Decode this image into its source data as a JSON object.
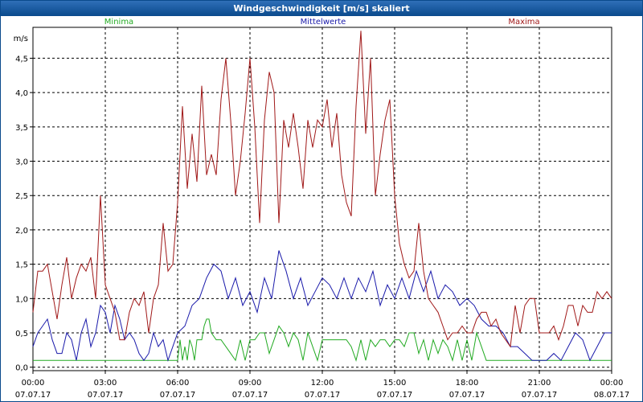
{
  "window": {
    "title": "Windgeschwindigkeit [m/s] skaliert"
  },
  "chart_data": {
    "type": "line",
    "title": "Windgeschwindigkeit [m/s] skaliert",
    "ylabel": "m/s",
    "xlabel": "",
    "ylim": [
      -0.05,
      4.95
    ],
    "yticks": [
      0.0,
      0.5,
      1.0,
      1.5,
      2.0,
      2.5,
      3.0,
      3.5,
      4.0,
      4.5
    ],
    "ytick_labels": [
      "0,0",
      "0,5",
      "1,0",
      "1,5",
      "2,0",
      "2,5",
      "3,0",
      "3,5",
      "4,0",
      "4,5"
    ],
    "xlim_hours": [
      0,
      24
    ],
    "xticks_hours": [
      0,
      3,
      6,
      9,
      12,
      15,
      18,
      21,
      24
    ],
    "xtick_times": [
      "00:00",
      "03:00",
      "06:00",
      "09:00",
      "12:00",
      "15:00",
      "18:00",
      "21:00",
      "00:00"
    ],
    "xtick_dates": [
      "07.07.17",
      "07.07.17",
      "07.07.17",
      "07.07.17",
      "07.07.17",
      "07.07.17",
      "07.07.17",
      "07.07.17",
      "08.07.17"
    ],
    "grid": true,
    "legend_position": "top",
    "series": [
      {
        "name": "Minima",
        "color": "#22aa22",
        "x": [
          0,
          6.0,
          6.1,
          6.2,
          6.3,
          6.4,
          6.5,
          6.6,
          6.7,
          6.8,
          7.0,
          7.1,
          7.2,
          7.3,
          7.4,
          7.6,
          7.8,
          8.0,
          8.2,
          8.4,
          8.6,
          8.8,
          9.0,
          9.2,
          9.4,
          9.6,
          9.8,
          10.0,
          10.2,
          10.4,
          10.6,
          10.8,
          11.0,
          11.2,
          11.4,
          11.6,
          11.8,
          12.0,
          13.0,
          13.2,
          13.4,
          13.6,
          13.8,
          14.0,
          14.2,
          14.4,
          14.6,
          14.8,
          15.0,
          15.2,
          15.4,
          15.6,
          15.8,
          16.0,
          16.2,
          16.4,
          16.6,
          16.8,
          17.0,
          17.2,
          17.4,
          17.6,
          17.8,
          18.0,
          18.2,
          18.4,
          18.6,
          18.8,
          19.0,
          24.0
        ],
        "y": [
          0.1,
          0.1,
          0.4,
          0.1,
          0.3,
          0.1,
          0.4,
          0.3,
          0.1,
          0.4,
          0.4,
          0.6,
          0.7,
          0.7,
          0.5,
          0.4,
          0.4,
          0.3,
          0.2,
          0.1,
          0.4,
          0.1,
          0.4,
          0.4,
          0.5,
          0.5,
          0.2,
          0.4,
          0.6,
          0.5,
          0.3,
          0.5,
          0.4,
          0.1,
          0.5,
          0.3,
          0.1,
          0.4,
          0.4,
          0.3,
          0.1,
          0.4,
          0.1,
          0.4,
          0.3,
          0.4,
          0.4,
          0.3,
          0.4,
          0.4,
          0.3,
          0.5,
          0.5,
          0.2,
          0.4,
          0.1,
          0.4,
          0.2,
          0.4,
          0.3,
          0.1,
          0.4,
          0.1,
          0.4,
          0.1,
          0.5,
          0.3,
          0.1,
          0.1,
          0.1
        ]
      },
      {
        "name": "Mittelwerte",
        "color": "#1a1aaa",
        "x": [
          0,
          0.2,
          0.4,
          0.6,
          0.8,
          1.0,
          1.2,
          1.4,
          1.6,
          1.8,
          2.0,
          2.2,
          2.4,
          2.6,
          2.8,
          3.0,
          3.2,
          3.4,
          3.6,
          3.8,
          4.0,
          4.2,
          4.4,
          4.6,
          4.8,
          5.0,
          5.2,
          5.4,
          5.6,
          5.8,
          6.0,
          6.3,
          6.6,
          6.9,
          7.2,
          7.5,
          7.8,
          8.1,
          8.4,
          8.7,
          9.0,
          9.3,
          9.6,
          9.9,
          10.2,
          10.5,
          10.8,
          11.1,
          11.4,
          11.7,
          12.0,
          12.3,
          12.6,
          12.9,
          13.2,
          13.5,
          13.8,
          14.1,
          14.4,
          14.7,
          15.0,
          15.3,
          15.6,
          15.9,
          16.2,
          16.5,
          16.8,
          17.1,
          17.4,
          17.7,
          18.0,
          18.3,
          18.6,
          18.9,
          19.2,
          19.5,
          19.8,
          20.1,
          20.4,
          20.7,
          21.0,
          21.3,
          21.6,
          21.9,
          22.2,
          22.5,
          22.8,
          23.1,
          23.4,
          23.7,
          24.0
        ],
        "y": [
          0.3,
          0.5,
          0.6,
          0.7,
          0.4,
          0.2,
          0.2,
          0.5,
          0.4,
          0.1,
          0.5,
          0.7,
          0.3,
          0.5,
          0.9,
          0.8,
          0.5,
          0.9,
          0.7,
          0.4,
          0.5,
          0.4,
          0.2,
          0.1,
          0.2,
          0.5,
          0.3,
          0.4,
          0.1,
          0.3,
          0.5,
          0.6,
          0.9,
          1.0,
          1.3,
          1.5,
          1.4,
          1.0,
          1.3,
          0.9,
          1.1,
          0.8,
          1.3,
          1.0,
          1.7,
          1.4,
          1.0,
          1.3,
          0.9,
          1.1,
          1.3,
          1.2,
          1.0,
          1.3,
          1.0,
          1.3,
          1.1,
          1.4,
          0.9,
          1.2,
          1.0,
          1.3,
          1.0,
          1.4,
          1.1,
          1.4,
          1.0,
          1.2,
          1.1,
          0.9,
          1.0,
          0.9,
          0.7,
          0.6,
          0.6,
          0.5,
          0.3,
          0.3,
          0.2,
          0.1,
          0.1,
          0.1,
          0.2,
          0.1,
          0.3,
          0.5,
          0.4,
          0.1,
          0.3,
          0.5,
          0.5
        ]
      },
      {
        "name": "Maxima",
        "color": "#a01818",
        "x": [
          0,
          0.2,
          0.4,
          0.6,
          0.8,
          1.0,
          1.2,
          1.4,
          1.6,
          1.8,
          2.0,
          2.2,
          2.4,
          2.6,
          2.8,
          3.0,
          3.2,
          3.4,
          3.6,
          3.8,
          4.0,
          4.2,
          4.4,
          4.6,
          4.8,
          5.0,
          5.2,
          5.4,
          5.6,
          5.8,
          6.0,
          6.2,
          6.4,
          6.6,
          6.8,
          7.0,
          7.2,
          7.4,
          7.6,
          7.8,
          8.0,
          8.2,
          8.4,
          8.6,
          8.8,
          9.0,
          9.2,
          9.4,
          9.6,
          9.8,
          10.0,
          10.2,
          10.4,
          10.6,
          10.8,
          11.0,
          11.2,
          11.4,
          11.6,
          11.8,
          12.0,
          12.2,
          12.4,
          12.6,
          12.8,
          13.0,
          13.2,
          13.4,
          13.6,
          13.8,
          14.0,
          14.2,
          14.4,
          14.6,
          14.8,
          15.0,
          15.2,
          15.4,
          15.6,
          15.8,
          16.0,
          16.2,
          16.4,
          16.6,
          16.8,
          17.0,
          17.2,
          17.4,
          17.6,
          17.8,
          18.0,
          18.2,
          18.4,
          18.6,
          18.8,
          19.0,
          19.2,
          19.4,
          19.6,
          19.8,
          20.0,
          20.2,
          20.4,
          20.6,
          20.8,
          21.0,
          21.2,
          21.4,
          21.6,
          21.8,
          22.0,
          22.2,
          22.4,
          22.6,
          22.8,
          23.0,
          23.2,
          23.4,
          23.6,
          23.8,
          24.0
        ],
        "y": [
          0.8,
          1.4,
          1.4,
          1.5,
          1.1,
          0.7,
          1.2,
          1.6,
          1.0,
          1.3,
          1.5,
          1.4,
          1.6,
          1.0,
          2.5,
          1.2,
          1.0,
          0.8,
          0.4,
          0.4,
          0.8,
          1.0,
          0.9,
          1.1,
          0.5,
          1.0,
          1.2,
          2.1,
          1.4,
          1.5,
          2.4,
          3.8,
          2.6,
          3.4,
          2.7,
          4.1,
          2.8,
          3.1,
          2.8,
          3.9,
          4.5,
          3.6,
          2.5,
          3.0,
          3.7,
          4.5,
          3.5,
          2.1,
          3.6,
          4.3,
          4.0,
          2.1,
          3.6,
          3.2,
          3.7,
          3.2,
          2.6,
          3.6,
          3.2,
          3.6,
          3.5,
          3.9,
          3.2,
          3.7,
          2.8,
          2.4,
          2.2,
          3.8,
          4.9,
          3.4,
          4.5,
          2.5,
          3.1,
          3.6,
          3.9,
          2.5,
          1.8,
          1.5,
          1.3,
          1.4,
          2.1,
          1.4,
          1.0,
          0.9,
          0.8,
          0.6,
          0.4,
          0.5,
          0.5,
          0.6,
          0.5,
          0.5,
          0.7,
          0.8,
          0.8,
          0.6,
          0.7,
          0.5,
          0.4,
          0.3,
          0.9,
          0.5,
          0.9,
          1.0,
          1.0,
          0.5,
          0.5,
          0.5,
          0.6,
          0.4,
          0.6,
          0.9,
          0.9,
          0.6,
          0.9,
          0.8,
          0.8,
          1.1,
          1.0,
          1.1,
          1.0
        ]
      }
    ]
  }
}
